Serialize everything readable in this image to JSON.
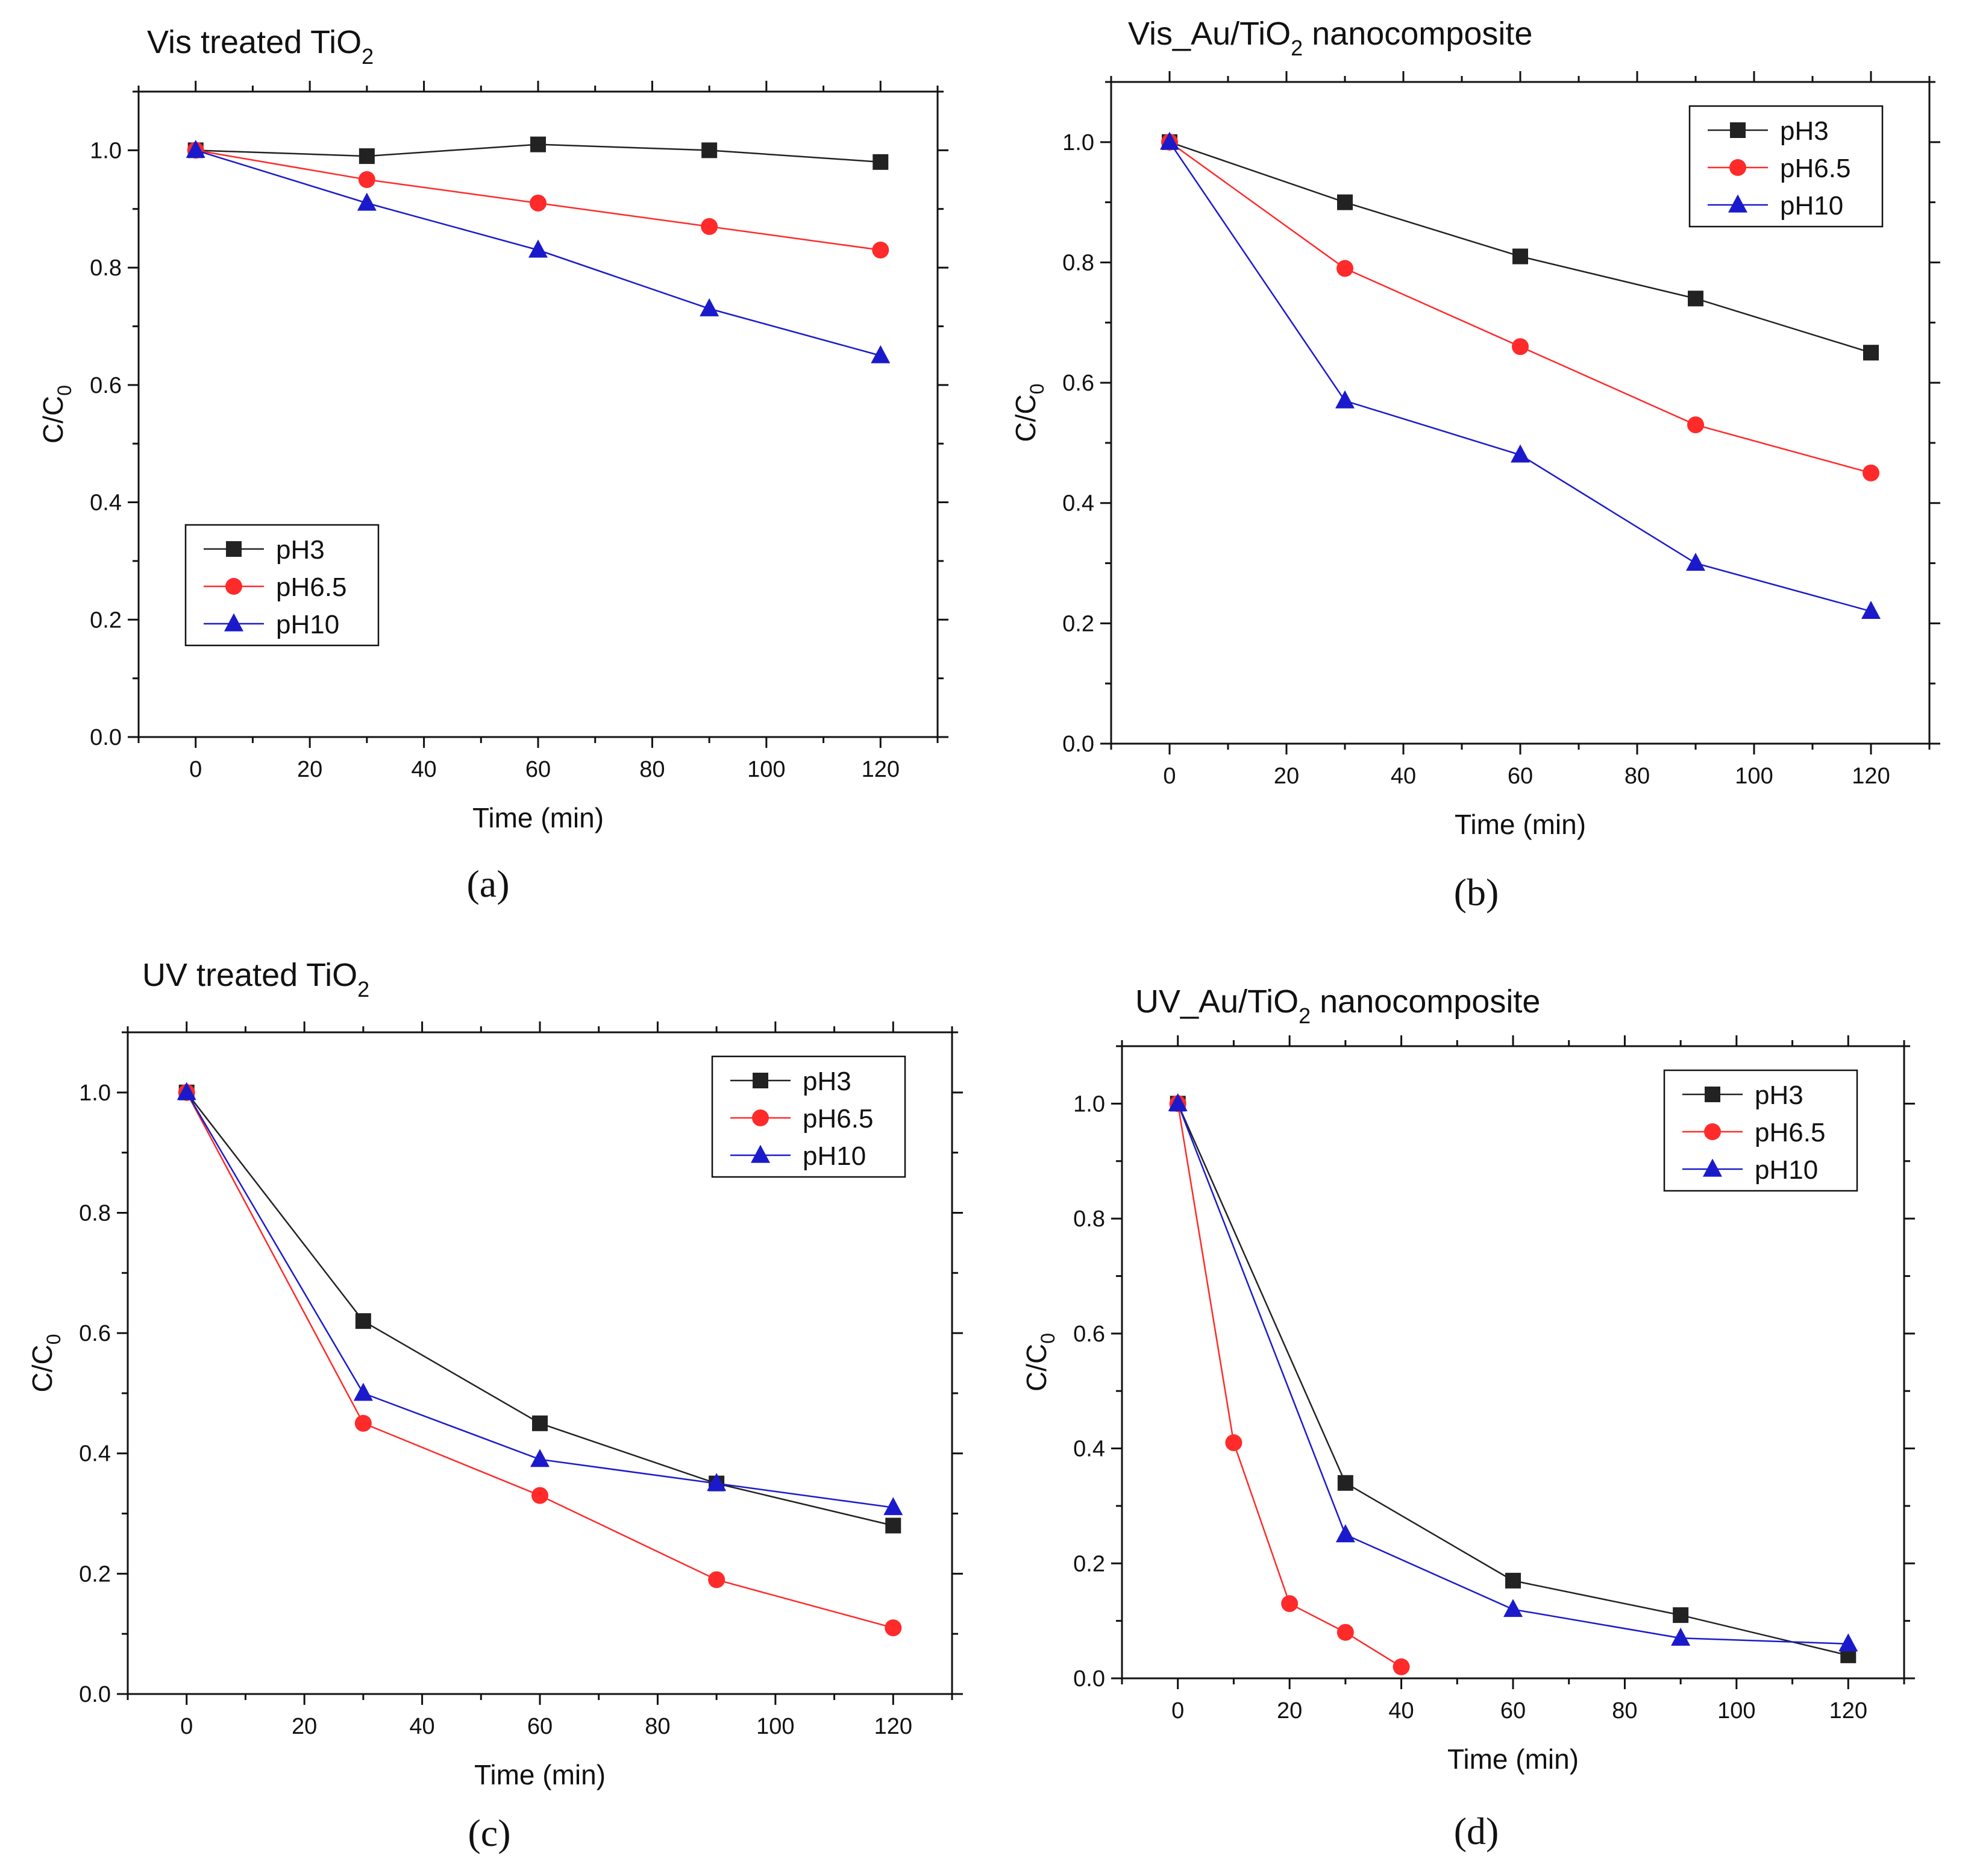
{
  "chart_data": [
    {
      "panel": "a",
      "type": "line",
      "title": "Vis treated TiO",
      "title_subscript": "2",
      "xlabel": "Time (min)",
      "ylabel": "C/C",
      "ylabel_subscript": "0",
      "xlim": [
        -10,
        130
      ],
      "ylim": [
        0,
        1.1
      ],
      "xticks": [
        0,
        20,
        40,
        60,
        80,
        100,
        120
      ],
      "yticks": [
        0.0,
        0.2,
        0.4,
        0.6,
        0.8,
        1.0
      ],
      "ytick_labels": [
        "0.0",
        "0.2",
        "0.4",
        "0.6",
        "0.8",
        "1.0"
      ],
      "legend_position": "bottom-left",
      "series": [
        {
          "name": "pH3",
          "color": "#222222",
          "marker": "square",
          "x": [
            0,
            30,
            60,
            90,
            120
          ],
          "y": [
            1.0,
            0.99,
            1.01,
            1.0,
            0.98
          ]
        },
        {
          "name": "pH6.5",
          "color": "#ff2a2a",
          "marker": "circle",
          "x": [
            0,
            30,
            60,
            90,
            120
          ],
          "y": [
            1.0,
            0.95,
            0.91,
            0.87,
            0.83
          ]
        },
        {
          "name": "pH10",
          "color": "#1a1acc",
          "marker": "triangle",
          "x": [
            0,
            30,
            60,
            90,
            120
          ],
          "y": [
            1.0,
            0.91,
            0.83,
            0.73,
            0.65
          ]
        }
      ]
    },
    {
      "panel": "b",
      "type": "line",
      "title": "Vis_Au/TiO",
      "title_subscript": "2",
      "title_suffix": " nanocomposite",
      "xlabel": "Time (min)",
      "ylabel": "C/C",
      "ylabel_subscript": "0",
      "xlim": [
        -10,
        130
      ],
      "ylim": [
        0,
        1.1
      ],
      "xticks": [
        0,
        20,
        40,
        60,
        80,
        100,
        120
      ],
      "yticks": [
        0.0,
        0.2,
        0.4,
        0.6,
        0.8,
        1.0
      ],
      "ytick_labels": [
        "0.0",
        "0.2",
        "0.4",
        "0.6",
        "0.8",
        "1.0"
      ],
      "legend_position": "top-right",
      "series": [
        {
          "name": "pH3",
          "color": "#222222",
          "marker": "square",
          "x": [
            0,
            30,
            60,
            90,
            120
          ],
          "y": [
            1.0,
            0.9,
            0.81,
            0.74,
            0.65
          ]
        },
        {
          "name": "pH6.5",
          "color": "#ff2a2a",
          "marker": "circle",
          "x": [
            0,
            30,
            60,
            90,
            120
          ],
          "y": [
            1.0,
            0.79,
            0.66,
            0.53,
            0.45
          ]
        },
        {
          "name": "pH10",
          "color": "#1a1acc",
          "marker": "triangle",
          "x": [
            0,
            30,
            60,
            90,
            120
          ],
          "y": [
            1.0,
            0.57,
            0.48,
            0.3,
            0.22
          ]
        }
      ]
    },
    {
      "panel": "c",
      "type": "line",
      "title": "UV treated TiO",
      "title_subscript": "2",
      "xlabel": "Time (min)",
      "ylabel": "C/C",
      "ylabel_subscript": "0",
      "xlim": [
        -10,
        130
      ],
      "ylim": [
        0,
        1.1
      ],
      "xticks": [
        0,
        20,
        40,
        60,
        80,
        100,
        120
      ],
      "yticks": [
        0.0,
        0.2,
        0.4,
        0.6,
        0.8,
        1.0
      ],
      "ytick_labels": [
        "0.0",
        "0.2",
        "0.4",
        "0.6",
        "0.8",
        "1.0"
      ],
      "legend_position": "top-right",
      "series": [
        {
          "name": "pH3",
          "color": "#222222",
          "marker": "square",
          "x": [
            0,
            30,
            60,
            90,
            120
          ],
          "y": [
            1.0,
            0.62,
            0.45,
            0.35,
            0.28
          ]
        },
        {
          "name": "pH6.5",
          "color": "#ff2a2a",
          "marker": "circle",
          "x": [
            0,
            30,
            60,
            90,
            120
          ],
          "y": [
            1.0,
            0.45,
            0.33,
            0.19,
            0.11
          ]
        },
        {
          "name": "pH10",
          "color": "#1a1acc",
          "marker": "triangle",
          "x": [
            0,
            30,
            60,
            90,
            120
          ],
          "y": [
            1.0,
            0.5,
            0.39,
            0.35,
            0.31
          ]
        }
      ]
    },
    {
      "panel": "d",
      "type": "line",
      "title": "UV_Au/TiO",
      "title_subscript": "2",
      "title_suffix": " nanocomposite",
      "xlabel": "Time (min)",
      "ylabel": "C/C",
      "ylabel_subscript": "0",
      "xlim": [
        -10,
        130
      ],
      "ylim": [
        0,
        1.1
      ],
      "xticks": [
        0,
        20,
        40,
        60,
        80,
        100,
        120
      ],
      "yticks": [
        0.0,
        0.2,
        0.4,
        0.6,
        0.8,
        1.0
      ],
      "ytick_labels": [
        "0.0",
        "0.2",
        "0.4",
        "0.6",
        "0.8",
        "1.0"
      ],
      "legend_position": "top-right",
      "series": [
        {
          "name": "pH3",
          "color": "#222222",
          "marker": "square",
          "x": [
            0,
            30,
            60,
            90,
            120
          ],
          "y": [
            1.0,
            0.34,
            0.17,
            0.11,
            0.04
          ]
        },
        {
          "name": "pH6.5",
          "color": "#ff2a2a",
          "marker": "circle",
          "x": [
            0,
            10,
            20,
            30,
            40
          ],
          "y": [
            1.0,
            0.41,
            0.13,
            0.08,
            0.02
          ]
        },
        {
          "name": "pH10",
          "color": "#1a1acc",
          "marker": "triangle",
          "x": [
            0,
            30,
            60,
            90,
            120
          ],
          "y": [
            1.0,
            0.25,
            0.12,
            0.07,
            0.06
          ]
        }
      ]
    }
  ],
  "panel_labels": [
    "(a)",
    "(b)",
    "(c)",
    "(d)"
  ]
}
